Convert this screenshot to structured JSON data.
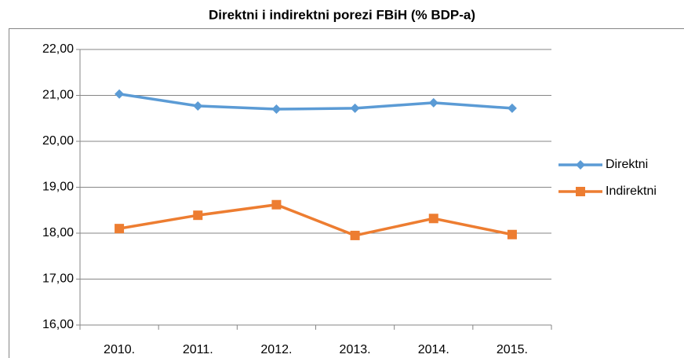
{
  "chart_data": {
    "type": "line",
    "title": "Direktni i indirektni porezi FBiH (% BDP-a)",
    "categories": [
      "2010.",
      "2011.",
      "2012.",
      "2013.",
      "2014.",
      "2015."
    ],
    "series": [
      {
        "name": "Direktni",
        "color": "#5b9bd5",
        "marker": "diamond",
        "values": [
          21.03,
          20.77,
          20.7,
          20.72,
          20.84,
          20.72
        ]
      },
      {
        "name": "Indirektni",
        "color": "#ed7d31",
        "marker": "square",
        "values": [
          18.1,
          18.39,
          18.62,
          17.95,
          18.32,
          17.97
        ]
      }
    ],
    "ylim": [
      16,
      22
    ],
    "yticks": [
      {
        "value": 16,
        "label": "16,00"
      },
      {
        "value": 17,
        "label": "17,00"
      },
      {
        "value": 18,
        "label": "18,00"
      },
      {
        "value": 19,
        "label": "19,00"
      },
      {
        "value": 20,
        "label": "20,00"
      },
      {
        "value": 21,
        "label": "21,00"
      },
      {
        "value": 22,
        "label": "22,00"
      }
    ],
    "grid": true,
    "legend": "right"
  }
}
